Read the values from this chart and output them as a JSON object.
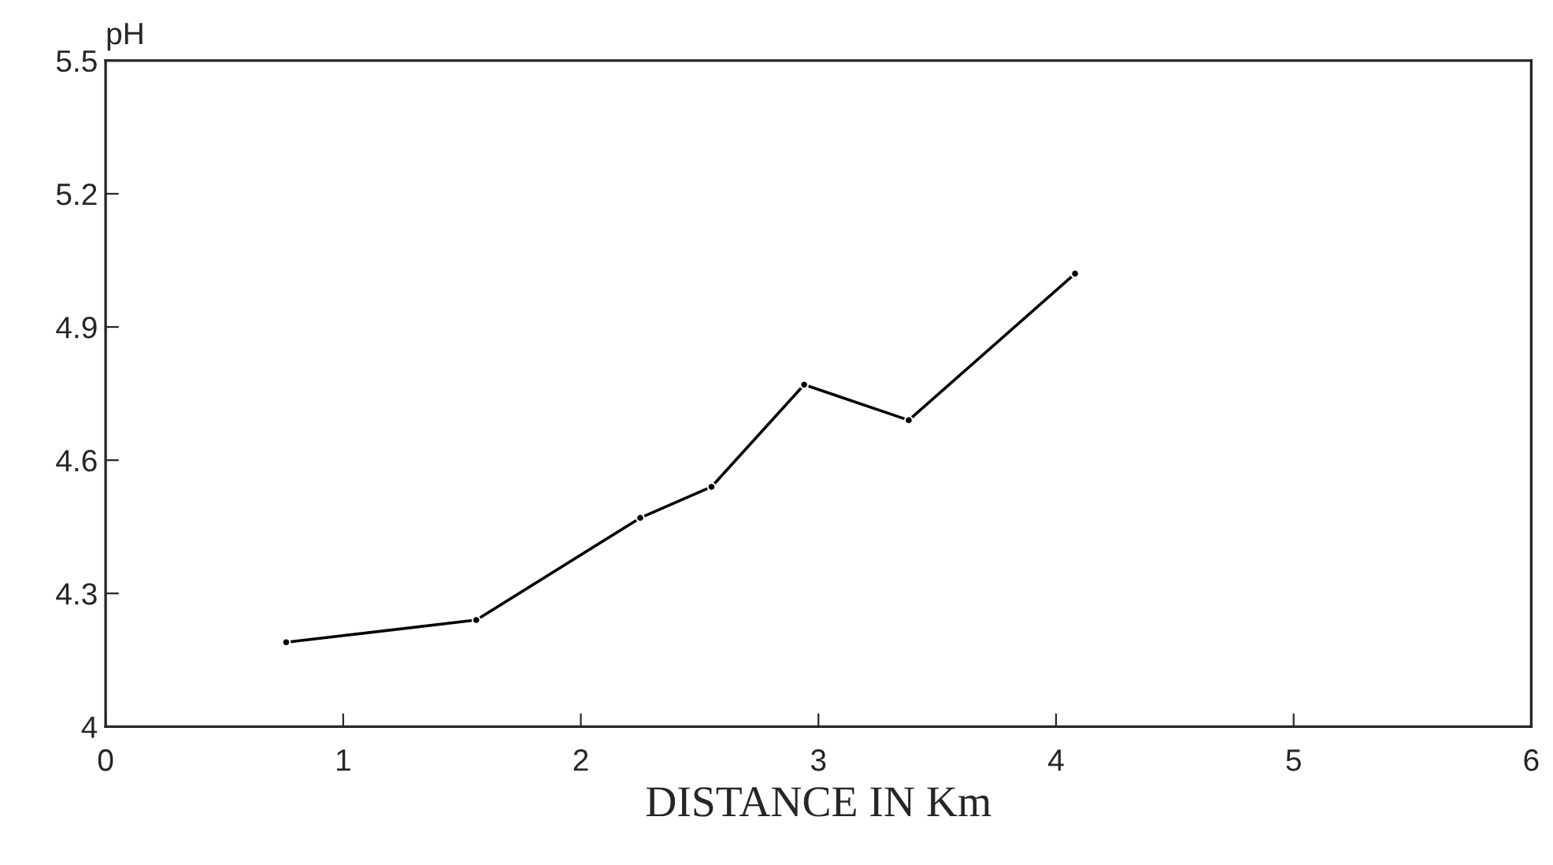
{
  "chart_data": {
    "type": "line",
    "xlabel": "DISTANCE IN Km",
    "ylabel": "pH",
    "x": [
      0.76,
      1.56,
      2.25,
      2.55,
      2.94,
      3.38,
      4.08
    ],
    "series": [
      {
        "color": "#000000",
        "values": [
          4.19,
          4.24,
          4.47,
          4.54,
          4.77,
          4.69,
          5.02
        ]
      }
    ],
    "xlim": [
      0,
      6
    ],
    "xticks": [
      0,
      1,
      2,
      3,
      4,
      5,
      6
    ],
    "ylim": [
      4,
      5.5
    ],
    "yticks": [
      4,
      4.3,
      4.6,
      4.9,
      5.2,
      5.5
    ],
    "marker": "circle",
    "grid": false
  }
}
